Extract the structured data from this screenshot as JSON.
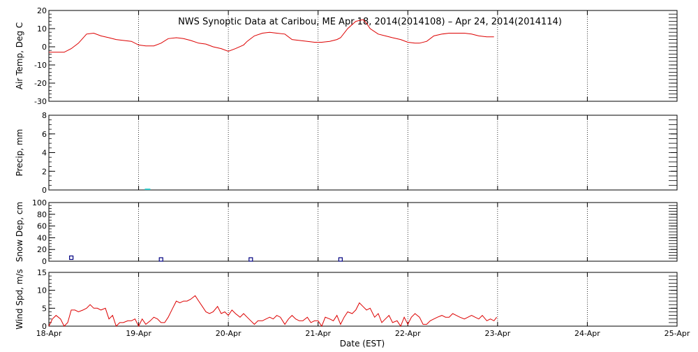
{
  "title": "NWS Synoptic Data at Caribou, ME   Apr 18, 2014(2014108) – Apr 24, 2014(2014114)",
  "x_axis": {
    "label": "Date (EST)",
    "ticks": [
      "18-Apr",
      "19-Apr",
      "20-Apr",
      "21-Apr",
      "22-Apr",
      "23-Apr",
      "24-Apr",
      "25-Apr"
    ]
  },
  "colors": {
    "air_temp": "#dd0000",
    "precip": "#33cccc",
    "snow": "#000080",
    "wind": "#dd0000",
    "frame": "#000000",
    "grid": "#000000"
  },
  "chart_data": [
    {
      "type": "line",
      "panel": "air-temp",
      "ylabel": "Air Temp, Deg C",
      "ylim": [
        -30,
        20
      ],
      "yticks": [
        -30,
        -20,
        -10,
        0,
        10,
        20
      ],
      "x_unit": "days since 18-Apr 00:00 EST",
      "grid": "vertical dotted at day boundaries",
      "series": [
        {
          "x": [
            0,
            0.08,
            0.17,
            0.25,
            0.33,
            0.42,
            0.5,
            0.58,
            0.67,
            0.75,
            0.83,
            0.92,
            1.0,
            1.08,
            1.17,
            1.25,
            1.33,
            1.42,
            1.5,
            1.58,
            1.67,
            1.75,
            1.83,
            1.92,
            2.0,
            2.08,
            2.17,
            2.21,
            2.29,
            2.38,
            2.46,
            2.54,
            2.63,
            2.71,
            2.79,
            2.88,
            2.96,
            3.04,
            3.13,
            3.21,
            3.25,
            3.33,
            3.42,
            3.5,
            3.54,
            3.58,
            3.67,
            3.75,
            3.83,
            3.92,
            4.0,
            4.08,
            4.13,
            4.21,
            4.29,
            4.38,
            4.46,
            4.54,
            4.63,
            4.71,
            4.79,
            4.88,
            4.96
          ],
          "values": [
            -3,
            -3,
            -3,
            -1,
            2,
            7,
            7.5,
            6,
            5,
            4,
            3.5,
            3,
            1,
            0.5,
            0.5,
            2,
            4.5,
            5,
            4.5,
            3.5,
            2,
            1.5,
            0,
            -1,
            -2.5,
            -1,
            1,
            3,
            6,
            7.5,
            8,
            7.5,
            7,
            4,
            3.5,
            3,
            2.5,
            2.5,
            3,
            4,
            5,
            10,
            14,
            15,
            13,
            10,
            7,
            6,
            5,
            4,
            2.5,
            2,
            2,
            3,
            6,
            7,
            7.5,
            7.5,
            7.5,
            7,
            6,
            5.5,
            5.5
          ]
        }
      ]
    },
    {
      "type": "bar",
      "panel": "precip",
      "ylabel": "Precip, mm",
      "ylim": [
        0,
        8
      ],
      "yticks": [
        0,
        2,
        4,
        6,
        8
      ],
      "x_unit": "days since 18-Apr 00:00 EST",
      "series": [
        {
          "x": [
            1.1
          ],
          "values": [
            0.1
          ]
        }
      ]
    },
    {
      "type": "scatter",
      "panel": "snow-depth",
      "ylabel": "Snow Dep, cm",
      "ylim": [
        0,
        100
      ],
      "yticks": [
        0,
        20,
        40,
        60,
        80,
        100
      ],
      "x_unit": "days since 18-Apr 00:00 EST",
      "series": [
        {
          "x": [
            0.25,
            1.25,
            2.25,
            3.25
          ],
          "values": [
            3,
            0,
            0,
            0
          ]
        }
      ]
    },
    {
      "type": "line",
      "panel": "wind-speed",
      "ylabel": "Wind Spd, m/s",
      "ylim": [
        0,
        15
      ],
      "yticks": [
        0,
        5,
        10,
        15
      ],
      "x_unit": "days since 18-Apr 00:00 EST",
      "series": [
        {
          "x": [
            0,
            0.04,
            0.08,
            0.13,
            0.17,
            0.21,
            0.25,
            0.29,
            0.33,
            0.38,
            0.42,
            0.46,
            0.5,
            0.54,
            0.58,
            0.63,
            0.67,
            0.71,
            0.75,
            0.79,
            0.83,
            0.88,
            0.92,
            0.96,
            1.0,
            1.04,
            1.08,
            1.13,
            1.17,
            1.21,
            1.25,
            1.29,
            1.33,
            1.38,
            1.42,
            1.46,
            1.5,
            1.54,
            1.58,
            1.63,
            1.67,
            1.71,
            1.75,
            1.79,
            1.83,
            1.88,
            1.92,
            1.96,
            2.0,
            2.04,
            2.08,
            2.13,
            2.17,
            2.21,
            2.25,
            2.29,
            2.33,
            2.38,
            2.42,
            2.46,
            2.5,
            2.54,
            2.58,
            2.63,
            2.67,
            2.71,
            2.75,
            2.79,
            2.83,
            2.88,
            2.92,
            2.96,
            3.0,
            3.04,
            3.08,
            3.13,
            3.17,
            3.21,
            3.25,
            3.29,
            3.33,
            3.38,
            3.42,
            3.46,
            3.5,
            3.54,
            3.58,
            3.63,
            3.67,
            3.71,
            3.75,
            3.79,
            3.83,
            3.88,
            3.92,
            3.96,
            4.0,
            4.04,
            4.08,
            4.13,
            4.17,
            4.21,
            4.25,
            4.29,
            4.33,
            4.38,
            4.42,
            4.46,
            4.5,
            4.54,
            4.58,
            4.63,
            4.67,
            4.71,
            4.75,
            4.79,
            4.83,
            4.88,
            4.92,
            4.96,
            4.99
          ],
          "values": [
            0,
            2,
            3,
            2,
            0,
            1,
            4.5,
            4.5,
            4,
            4.5,
            5,
            6,
            5,
            5,
            4.5,
            5,
            2,
            3,
            0,
            1,
            1,
            1.5,
            1.5,
            2,
            0,
            2,
            0.5,
            1.5,
            2.5,
            2,
            1,
            1,
            2.5,
            5,
            7,
            6.5,
            7,
            7,
            7.5,
            8.5,
            7,
            5.5,
            4,
            3.5,
            4,
            5.5,
            3.5,
            4,
            3,
            4.5,
            3.5,
            2.5,
            3.5,
            2.5,
            1.5,
            0.5,
            1.5,
            1.5,
            2,
            2.5,
            2,
            3,
            2.5,
            0.5,
            2,
            3,
            2,
            1.5,
            1.5,
            2.5,
            1,
            1.5,
            1.5,
            0,
            2.5,
            2,
            1.5,
            3,
            0.5,
            2.5,
            4,
            3.5,
            4.5,
            6.5,
            5.5,
            4.5,
            5,
            2.5,
            3.5,
            1,
            2,
            3,
            1,
            1.5,
            0,
            2.5,
            0.5,
            2.5,
            3.5,
            2.5,
            0.5,
            0.5,
            1.5,
            2,
            2.5,
            3,
            2.5,
            2.5,
            3.5,
            3,
            2.5,
            2,
            2.5,
            3,
            2.5,
            2,
            3,
            1.5,
            2,
            1.5,
            2.5
          ]
        }
      ]
    }
  ]
}
